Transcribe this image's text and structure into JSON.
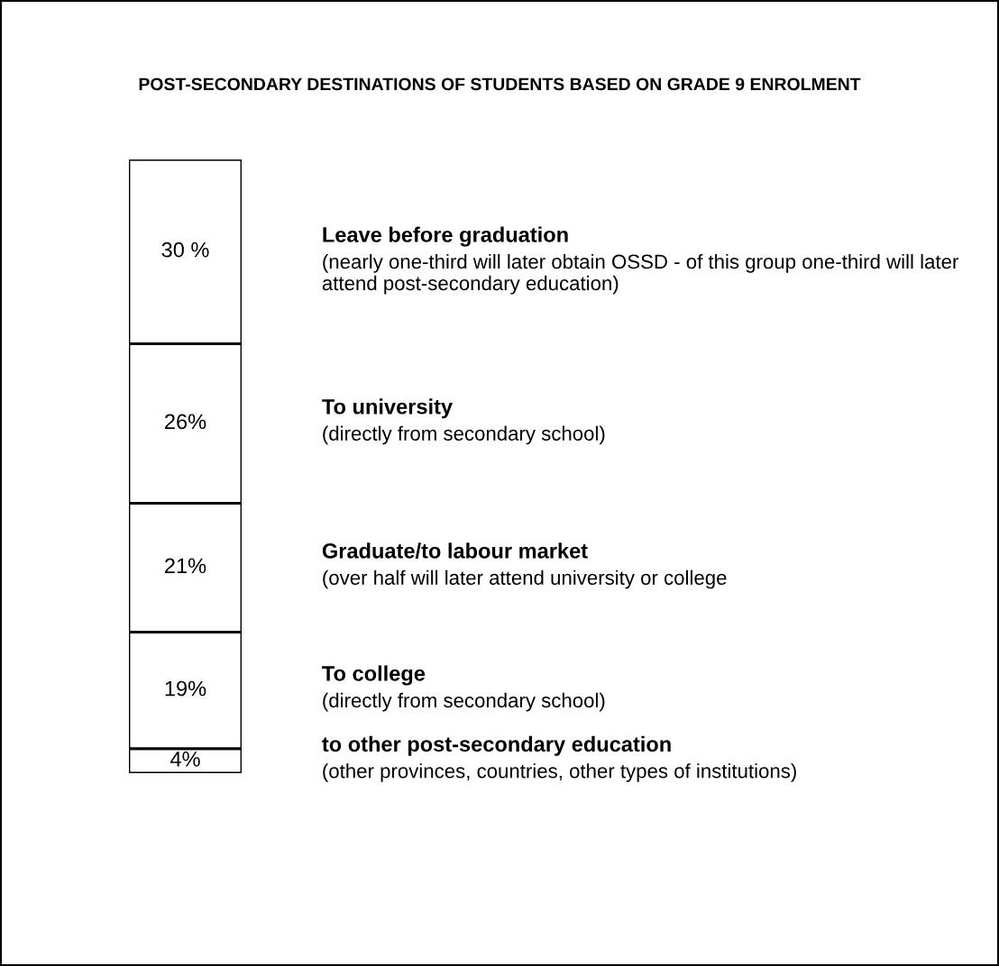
{
  "chart_data": {
    "type": "bar",
    "stacked": true,
    "title": "POST-SECONDARY DESTINATIONS OF STUDENTS BASED ON GRADE 9 ENROLMENT",
    "categories": [
      null
    ],
    "series": [
      {
        "name": "to other post-secondary education",
        "color": "#ffffff",
        "values": [
          4
        ],
        "value_labels": [
          "4%"
        ]
      },
      {
        "name": "To college",
        "color": "#ffffff",
        "values": [
          19
        ],
        "value_labels": [
          "19%"
        ]
      },
      {
        "name": "Graduate/to labour market",
        "color": "#ffffff",
        "values": [
          21
        ],
        "value_labels": [
          "21%"
        ]
      },
      {
        "name": "To university",
        "color": "#ffffff",
        "values": [
          26
        ],
        "value_labels": [
          "26%"
        ]
      },
      {
        "name": "Leave before graduation",
        "color": "#ffffff",
        "values": [
          30
        ],
        "value_labels": [
          "30 %"
        ]
      }
    ],
    "annotations": [
      "(other provinces, countries, other types of institutions)",
      "(directly from secondary school)",
      "(over half will later attend university or college",
      "(directly from secondary school)",
      "(nearly one-third will later obtain OSSD - of this group one-third will later attend post-secondary education)"
    ],
    "tick_labels": false
  }
}
